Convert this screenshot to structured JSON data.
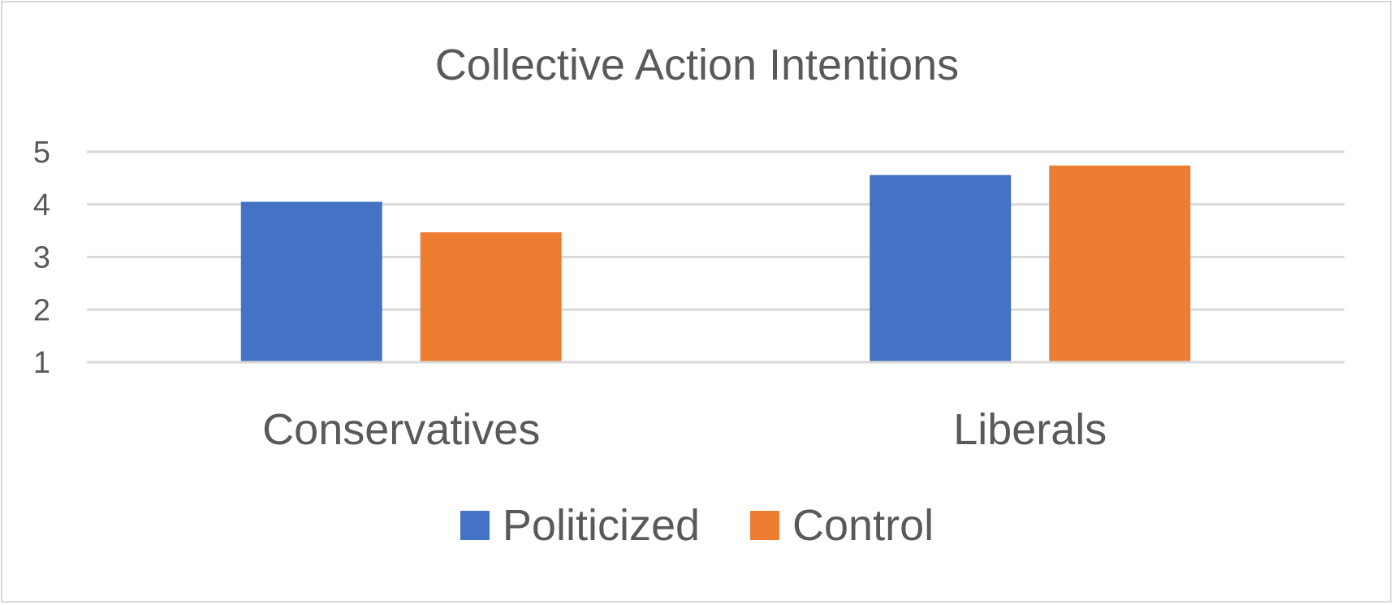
{
  "chart_data": {
    "type": "bar",
    "title": "Collective Action Intentions",
    "xlabel": "",
    "ylabel": "",
    "categories": [
      "Conservatives",
      "Liberals"
    ],
    "series": [
      {
        "name": "Politicized",
        "color": "#4472c4",
        "values": [
          4.05,
          4.56
        ]
      },
      {
        "name": "Control",
        "color": "#ed7d31",
        "values": [
          3.47,
          4.74
        ]
      }
    ],
    "ylim": [
      1,
      5
    ],
    "yticks": [
      "1",
      "2",
      "3",
      "4",
      "5"
    ],
    "grid": true,
    "legend_position": "bottom"
  }
}
